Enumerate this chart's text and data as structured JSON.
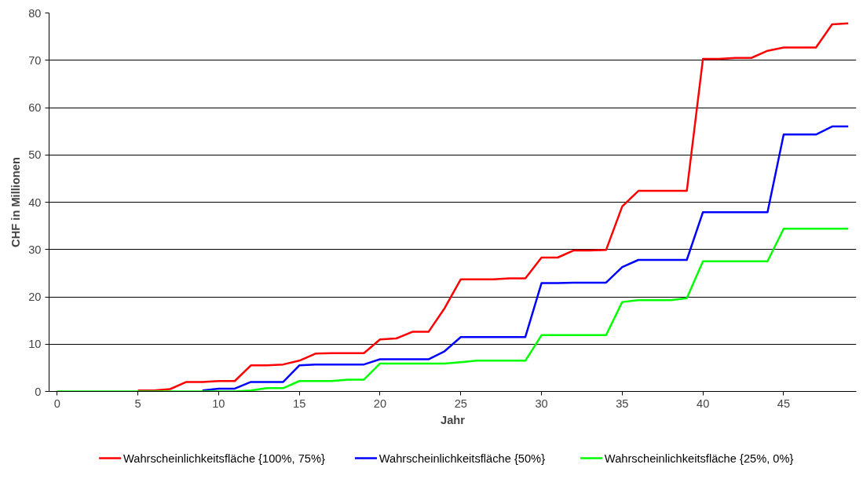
{
  "chart_data": {
    "type": "line",
    "xlabel": "Jahr",
    "ylabel": "CHF in Millionen",
    "x": [
      0,
      1,
      2,
      3,
      4,
      5,
      6,
      7,
      8,
      9,
      10,
      11,
      12,
      13,
      14,
      15,
      16,
      17,
      18,
      19,
      20,
      21,
      22,
      23,
      24,
      25,
      26,
      27,
      28,
      29,
      30,
      31,
      32,
      33,
      34,
      35,
      36,
      37,
      38,
      39,
      40,
      41,
      42,
      43,
      44,
      45,
      46,
      47,
      48,
      49
    ],
    "series": [
      {
        "name": "Wahrscheinlichkeitsfläche {100%, 75%}",
        "color": "#ff0000",
        "values": [
          null,
          null,
          null,
          null,
          null,
          0.2,
          0.2,
          0.5,
          2,
          2,
          2.2,
          2.2,
          5.5,
          5.5,
          5.7,
          6.5,
          8,
          8.1,
          8.1,
          8.1,
          11,
          11.2,
          12.6,
          12.6,
          17.6,
          23.7,
          23.7,
          23.7,
          23.9,
          23.9,
          28.3,
          28.3,
          29.8,
          29.8,
          29.9,
          39.1,
          42.4,
          42.4,
          42.4,
          42.4,
          70.3,
          70.3,
          70.5,
          70.5,
          72,
          72.7,
          72.7,
          72.7,
          77.6,
          77.8
        ]
      },
      {
        "name": "Wahrscheinlichkeitsfläche {50%}",
        "color": "#0000ff",
        "values": [
          null,
          null,
          null,
          null,
          null,
          null,
          null,
          null,
          null,
          0.2,
          0.6,
          0.6,
          2,
          2,
          2,
          5.5,
          5.7,
          5.7,
          5.7,
          5.7,
          6.8,
          6.8,
          6.8,
          6.8,
          8.5,
          11.5,
          11.5,
          11.5,
          11.5,
          11.5,
          22.9,
          22.9,
          23,
          23,
          23,
          26.3,
          27.8,
          27.8,
          27.8,
          27.8,
          37.9,
          37.9,
          37.9,
          37.9,
          37.9,
          54.3,
          54.3,
          54.3,
          56,
          56
        ]
      },
      {
        "name": "Wahrscheinlichkeitsfläche {25%, 0%}",
        "color": "#00ff00",
        "values": [
          0,
          0,
          0,
          0,
          0,
          0,
          0,
          0,
          0,
          0,
          0,
          0,
          0.2,
          0.7,
          0.7,
          2.2,
          2.2,
          2.2,
          2.5,
          2.5,
          5.9,
          5.9,
          5.9,
          5.9,
          5.9,
          6.2,
          6.5,
          6.5,
          6.5,
          6.5,
          11.9,
          11.9,
          11.9,
          11.9,
          11.9,
          18.9,
          19.3,
          19.3,
          19.3,
          19.7,
          27.5,
          27.5,
          27.5,
          27.5,
          27.5,
          34.4,
          34.4,
          34.4,
          34.4,
          34.4
        ]
      }
    ],
    "xlim": [
      -0.5,
      49.5
    ],
    "xticks": [
      0,
      5,
      10,
      15,
      20,
      25,
      30,
      35,
      40,
      45
    ],
    "ylim": [
      0,
      80
    ],
    "yticks": [
      0,
      10,
      20,
      30,
      40,
      50,
      60,
      70,
      80
    ],
    "grid": "y",
    "legend": "bottom",
    "marker": "none",
    "line_style": "solid"
  }
}
